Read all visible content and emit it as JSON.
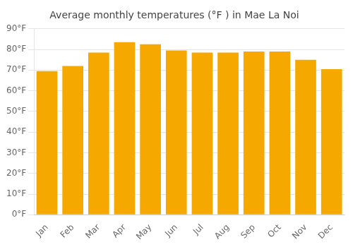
{
  "chart_data": {
    "type": "bar",
    "title": "Average monthly temperatures (°F ) in Mae La Noi",
    "categories": [
      "Jan",
      "Feb",
      "Mar",
      "Apr",
      "May",
      "Jun",
      "Jul",
      "Aug",
      "Sep",
      "Oct",
      "Nov",
      "Dec"
    ],
    "values": [
      69.5,
      72.0,
      78.5,
      83.5,
      82.5,
      79.5,
      78.5,
      78.5,
      79.0,
      79.0,
      75.0,
      70.5
    ],
    "color": "#F5A800",
    "ylim": [
      0,
      90
    ],
    "yticks": [
      {
        "value": 0,
        "label": "0°F"
      },
      {
        "value": 10,
        "label": "10°F"
      },
      {
        "value": 20,
        "label": "20°F"
      },
      {
        "value": 30,
        "label": "30°F"
      },
      {
        "value": 40,
        "label": "40°F"
      },
      {
        "value": 50,
        "label": "50°F"
      },
      {
        "value": 60,
        "label": "60°F"
      },
      {
        "value": 70,
        "label": "70°F"
      },
      {
        "value": 80,
        "label": "80°F"
      },
      {
        "value": 90,
        "label": "90°F"
      }
    ],
    "grid": true
  }
}
